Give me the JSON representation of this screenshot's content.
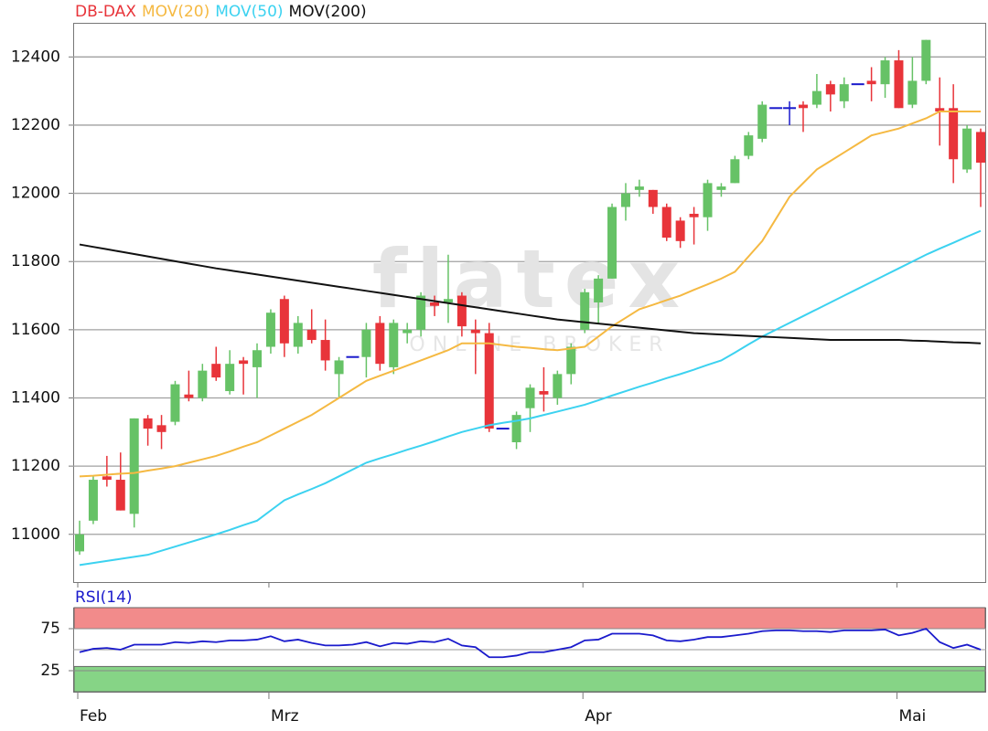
{
  "chart_data": [
    {
      "type": "candlestick",
      "categories": [
        "Feb",
        null,
        null,
        null,
        null,
        null,
        null,
        null,
        null,
        null,
        null,
        null,
        null,
        null,
        "Mrz",
        null,
        null,
        null,
        null,
        null,
        null,
        null,
        null,
        null,
        null,
        null,
        null,
        null,
        null,
        null,
        null,
        null,
        null,
        null,
        null,
        null,
        null,
        "Apr",
        null,
        null,
        null,
        null,
        null,
        null,
        null,
        null,
        null,
        null,
        null,
        null,
        null,
        null,
        null,
        null,
        null,
        null,
        null,
        null,
        null,
        null,
        "Mai",
        null,
        null,
        null,
        null,
        null,
        null
      ],
      "watermark": "flatex",
      "watermark_subtitle": "ONLINE BROKER",
      "ylim": [
        10860,
        12500
      ],
      "yticks": [
        11000,
        11200,
        11400,
        11600,
        11800,
        12000,
        12200,
        12400
      ],
      "grid": true,
      "series": [
        {
          "name": "DB-DAX",
          "color": "#e8343a",
          "up_color": "#66c266",
          "down_color": "#e8343a",
          "flat_color": "#1a1acc",
          "open": [
            10950,
            11040,
            11170,
            11160,
            11060,
            11340,
            11320,
            11330,
            11410,
            11400,
            11500,
            11420,
            11510,
            11490,
            11550,
            11690,
            11550,
            11600,
            11570,
            11470,
            11520,
            11520,
            11620,
            11490,
            11590,
            11600,
            11680,
            11680,
            11700,
            11600,
            11590,
            11310,
            11270,
            11370,
            11420,
            11400,
            11470,
            11600,
            11680,
            11750,
            11960,
            12010,
            12010,
            11960,
            11920,
            11940,
            11930,
            12010,
            12030,
            12110,
            12160,
            12250,
            12250,
            12260,
            12260,
            12320,
            12270,
            12320,
            12330,
            12320,
            12390,
            12260,
            12330,
            12250,
            12250,
            12070,
            12180
          ],
          "high": [
            11040,
            11170,
            11230,
            11240,
            11340,
            11350,
            11350,
            11450,
            11480,
            11500,
            11550,
            11540,
            11520,
            11560,
            11660,
            11700,
            11640,
            11660,
            11630,
            11520,
            11520,
            11620,
            11640,
            11630,
            11620,
            11710,
            11700,
            11820,
            11710,
            11630,
            11620,
            11310,
            11360,
            11440,
            11490,
            11480,
            11560,
            11720,
            11760,
            11970,
            12030,
            12040,
            12010,
            11970,
            11930,
            11960,
            12040,
            12030,
            12110,
            12180,
            12270,
            12250,
            12270,
            12270,
            12350,
            12330,
            12340,
            12320,
            12370,
            12400,
            12420,
            12400,
            12450,
            12340,
            12320,
            12200,
            12190
          ],
          "low": [
            10940,
            11030,
            11140,
            11070,
            11020,
            11260,
            11250,
            11320,
            11390,
            11390,
            11450,
            11410,
            11410,
            11400,
            11530,
            11520,
            11530,
            11560,
            11480,
            11400,
            11520,
            11460,
            11480,
            11470,
            11560,
            11580,
            11640,
            11620,
            11580,
            11470,
            11300,
            11310,
            11250,
            11300,
            11360,
            11380,
            11440,
            11590,
            11620,
            11750,
            11920,
            11990,
            11940,
            11860,
            11840,
            11850,
            11890,
            11990,
            12030,
            12100,
            12150,
            12250,
            12200,
            12180,
            12250,
            12240,
            12250,
            12320,
            12270,
            12280,
            12250,
            12250,
            12320,
            12140,
            12030,
            12060,
            11960
          ],
          "close": [
            11000,
            11160,
            11160,
            11070,
            11340,
            11310,
            11300,
            11440,
            11400,
            11480,
            11460,
            11500,
            11500,
            11540,
            11650,
            11560,
            11620,
            11570,
            11510,
            11510,
            11520,
            11600,
            11500,
            11620,
            11600,
            11700,
            11670,
            11690,
            11610,
            11590,
            11310,
            11310,
            11350,
            11430,
            11410,
            11470,
            11550,
            11710,
            11750,
            11960,
            12000,
            12020,
            11960,
            11870,
            11860,
            11930,
            12030,
            12020,
            12100,
            12170,
            12260,
            12250,
            12250,
            12250,
            12300,
            12290,
            12320,
            12320,
            12320,
            12390,
            12250,
            12330,
            12450,
            12240,
            12100,
            12190,
            12090
          ]
        },
        {
          "name": "MOV(20)",
          "color": "#f5b942",
          "values": [
            11170,
            11172,
            11175,
            11178,
            11180,
            11187,
            11193,
            11200,
            11210,
            11220,
            11230,
            11243,
            11257,
            11270,
            11290,
            11310,
            11330,
            11350,
            11375,
            11400,
            11425,
            11450,
            11465,
            11480,
            11495,
            11510,
            11525,
            11540,
            11560,
            11560,
            11560,
            11555,
            11550,
            11547,
            11543,
            11540,
            11545,
            11550,
            11580,
            11610,
            11635,
            11660,
            11673,
            11687,
            11700,
            11717,
            11733,
            11750,
            11770,
            11815,
            11860,
            11925,
            11990,
            12030,
            12070,
            12095,
            12120,
            12145,
            12170,
            12180,
            12190,
            12205,
            12220,
            12240,
            12240,
            12240,
            12240
          ]
        },
        {
          "name": "MOV(50)",
          "color": "#3cd2f0",
          "values": [
            10910,
            10916,
            10922,
            10928,
            10934,
            10940,
            10952,
            10964,
            10976,
            10988,
            11000,
            11013,
            11027,
            11040,
            11070,
            11100,
            11117,
            11133,
            11150,
            11170,
            11190,
            11210,
            11223,
            11235,
            11248,
            11260,
            11273,
            11287,
            11300,
            11310,
            11320,
            11327,
            11333,
            11340,
            11350,
            11360,
            11370,
            11380,
            11393,
            11407,
            11420,
            11433,
            11445,
            11458,
            11470,
            11483,
            11497,
            11510,
            11533,
            11557,
            11580,
            11600,
            11620,
            11640,
            11660,
            11680,
            11700,
            11720,
            11740,
            11760,
            11780,
            11800,
            11820,
            11838,
            11855,
            11873,
            11890
          ]
        },
        {
          "name": "MOV(200)",
          "color": "#111111",
          "values": [
            11850,
            11843,
            11836,
            11829,
            11822,
            11815,
            11808,
            11801,
            11794,
            11787,
            11780,
            11774,
            11768,
            11762,
            11756,
            11750,
            11744,
            11738,
            11732,
            11726,
            11720,
            11714,
            11708,
            11702,
            11696,
            11690,
            11684,
            11678,
            11672,
            11666,
            11660,
            11654,
            11648,
            11642,
            11636,
            11630,
            11626,
            11622,
            11618,
            11614,
            11610,
            11606,
            11602,
            11598,
            11594,
            11590,
            11588,
            11586,
            11584,
            11582,
            11580,
            11578,
            11576,
            11574,
            11572,
            11570,
            11570,
            11570,
            11570,
            11570,
            11570,
            11568,
            11567,
            11565,
            11563,
            11562,
            11560
          ]
        }
      ]
    },
    {
      "type": "line",
      "title": "RSI(14)",
      "title_color": "#1a1acc",
      "color": "#1a1acc",
      "ylim": [
        0,
        100
      ],
      "yticks": [
        25,
        75
      ],
      "midline": 50,
      "bands": [
        {
          "from": 75,
          "to": 100,
          "color": "#f28b8b"
        },
        {
          "from": 0,
          "to": 30,
          "color": "#86d486"
        }
      ],
      "values": [
        47,
        51,
        52,
        50,
        56,
        56,
        56,
        59,
        58,
        60,
        59,
        61,
        61,
        62,
        66,
        60,
        62,
        58,
        55,
        55,
        56,
        59,
        54,
        58,
        57,
        60,
        59,
        63,
        55,
        53,
        41,
        41,
        43,
        47,
        47,
        50,
        53,
        61,
        62,
        69,
        69,
        69,
        67,
        61,
        60,
        62,
        65,
        65,
        67,
        69,
        72,
        73,
        73,
        72,
        72,
        71,
        73,
        73,
        73,
        74,
        67,
        70,
        75,
        59,
        52,
        56,
        50
      ]
    }
  ]
}
